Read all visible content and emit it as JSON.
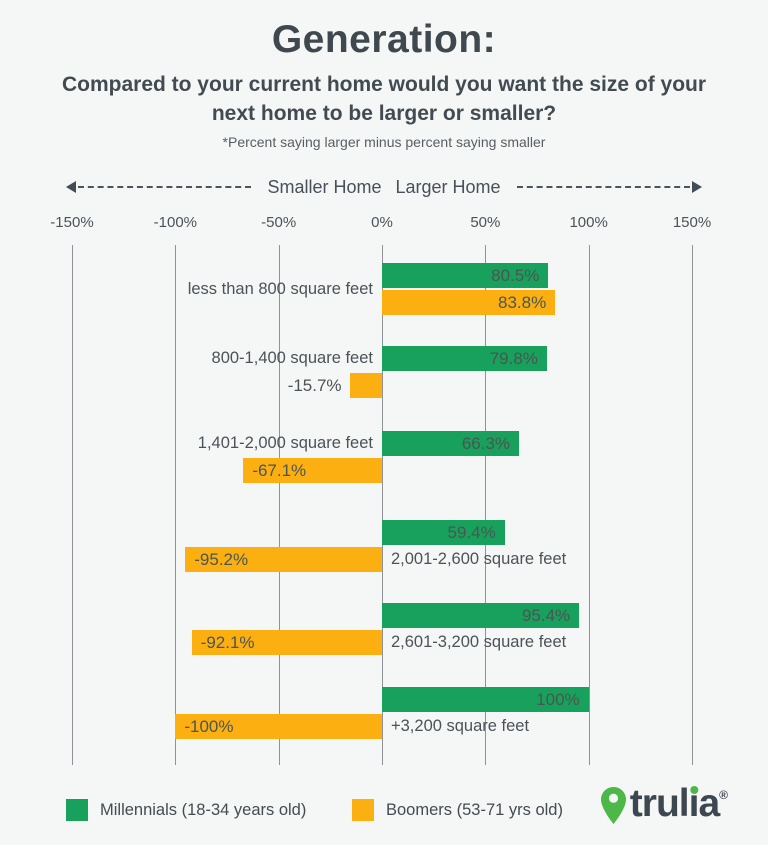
{
  "header": {
    "title": "Generation:",
    "subtitle": "Compared to your current home would you want the size of your next home to be larger or smaller?",
    "note": "*Percent saying larger minus percent saying smaller"
  },
  "axis": {
    "left_direction_label": "Smaller Home",
    "right_direction_label": "Larger Home",
    "tick_labels": [
      "-150%",
      "-100%",
      "-50%",
      "0%",
      "50%",
      "100%",
      "150%"
    ],
    "tick_values": [
      -150,
      -100,
      -50,
      0,
      50,
      100,
      150
    ]
  },
  "chart_data": {
    "type": "bar",
    "orientation": "horizontal-diverging",
    "title": "Generation: Compared to your current home would you want the size of your next home to be larger or smaller?",
    "xlabel": "Percent saying larger minus percent saying smaller (net %)",
    "xlim": [
      -150,
      150
    ],
    "grid": true,
    "legend_position": "bottom",
    "categories": [
      "less than 800 square feet",
      "800-1,400 square feet",
      "1,401-2,000 square feet",
      "2,001-2,600 square feet",
      "2,601-3,200 square feet",
      "+3,200 square feet"
    ],
    "series": [
      {
        "name": "Millennials (18-34 years old)",
        "color": "#18A15C",
        "values": [
          80.5,
          79.8,
          66.3,
          59.4,
          95.4,
          100
        ],
        "labels": [
          "80.5%",
          "79.8%",
          "66.3%",
          "59.4%",
          "95.4%",
          "100%"
        ]
      },
      {
        "name": "Boomers (53-71 yrs old)",
        "color": "#FBAF10",
        "values": [
          83.8,
          -15.7,
          -67.1,
          -95.2,
          -92.1,
          -100
        ],
        "labels": [
          "83.8%",
          "-15.7%",
          "-67.1%",
          "-95.2%",
          "-92.1%",
          "-100%"
        ]
      }
    ],
    "category_label_side": [
      "left",
      "left",
      "left",
      "right",
      "right",
      "right"
    ],
    "category_label_row": [
      "center",
      "top",
      "top",
      "bottom",
      "bottom",
      "bottom"
    ]
  },
  "legend": {
    "items": [
      {
        "label": "Millennials (18-34 years old)",
        "color": "#18A15C"
      },
      {
        "label": "Boomers (53-71 yrs old)",
        "color": "#FBAF10"
      }
    ]
  },
  "branding": {
    "logo_text": "trulia",
    "registered": "®",
    "pin_color": "#4DB848",
    "wordmark_color": "#3D474F",
    "idot_color": "#4DB848"
  },
  "colors": {
    "background": "#F5F6F6",
    "text_dark": "#414B51",
    "gridline": "#8D9397",
    "millennials_green": "#18A15C",
    "boomers_orange": "#FBAF10"
  }
}
